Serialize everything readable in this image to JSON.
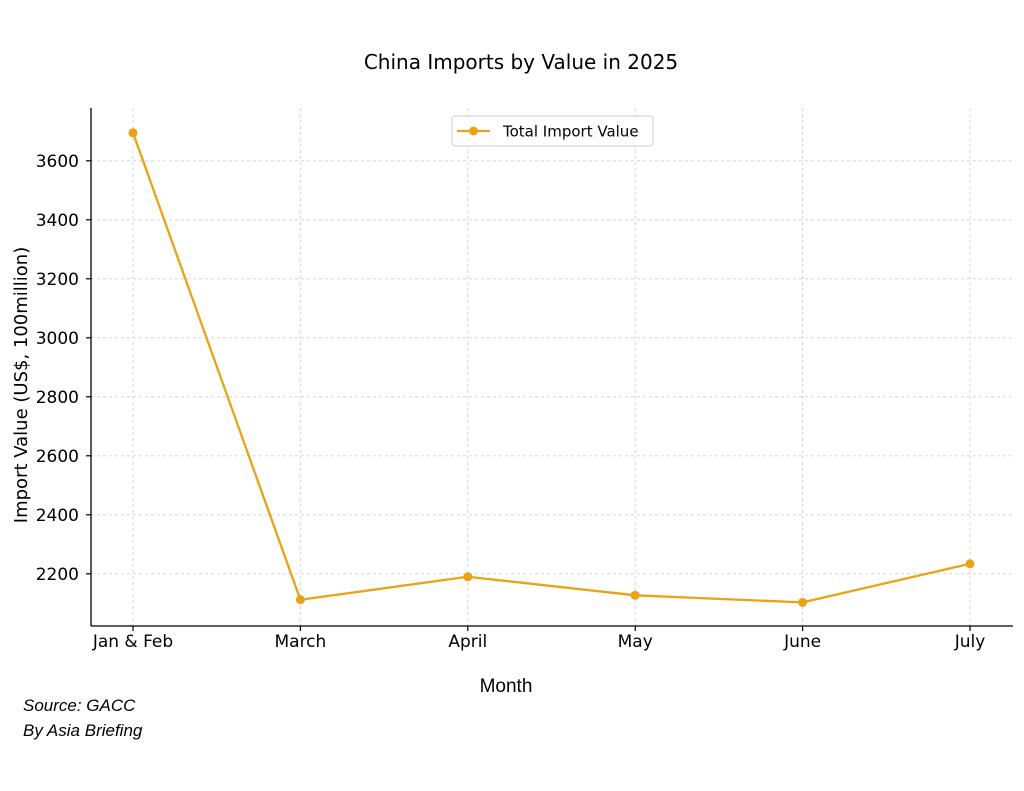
{
  "chart_data": {
    "type": "line",
    "title": "China Imports by Value in 2025",
    "xlabel": "Month",
    "ylabel": "Import Value (US$, 100million)",
    "categories": [
      "Jan & Feb",
      "March",
      "April",
      "May",
      "June",
      "July"
    ],
    "series": [
      {
        "name": "Total Import Value",
        "values": [
          3695,
          2112,
          2190,
          2127,
          2103,
          2234
        ],
        "color": "#E8A317",
        "marker": "circle"
      }
    ],
    "yticks": [
      2200,
      2400,
      2600,
      2800,
      3000,
      3200,
      3400,
      3600
    ],
    "ylim": [
      2023,
      3779
    ],
    "grid": true,
    "legend_position": "upper center"
  },
  "footer": {
    "source": "Source: GACC",
    "credit": "By Asia Briefing"
  }
}
